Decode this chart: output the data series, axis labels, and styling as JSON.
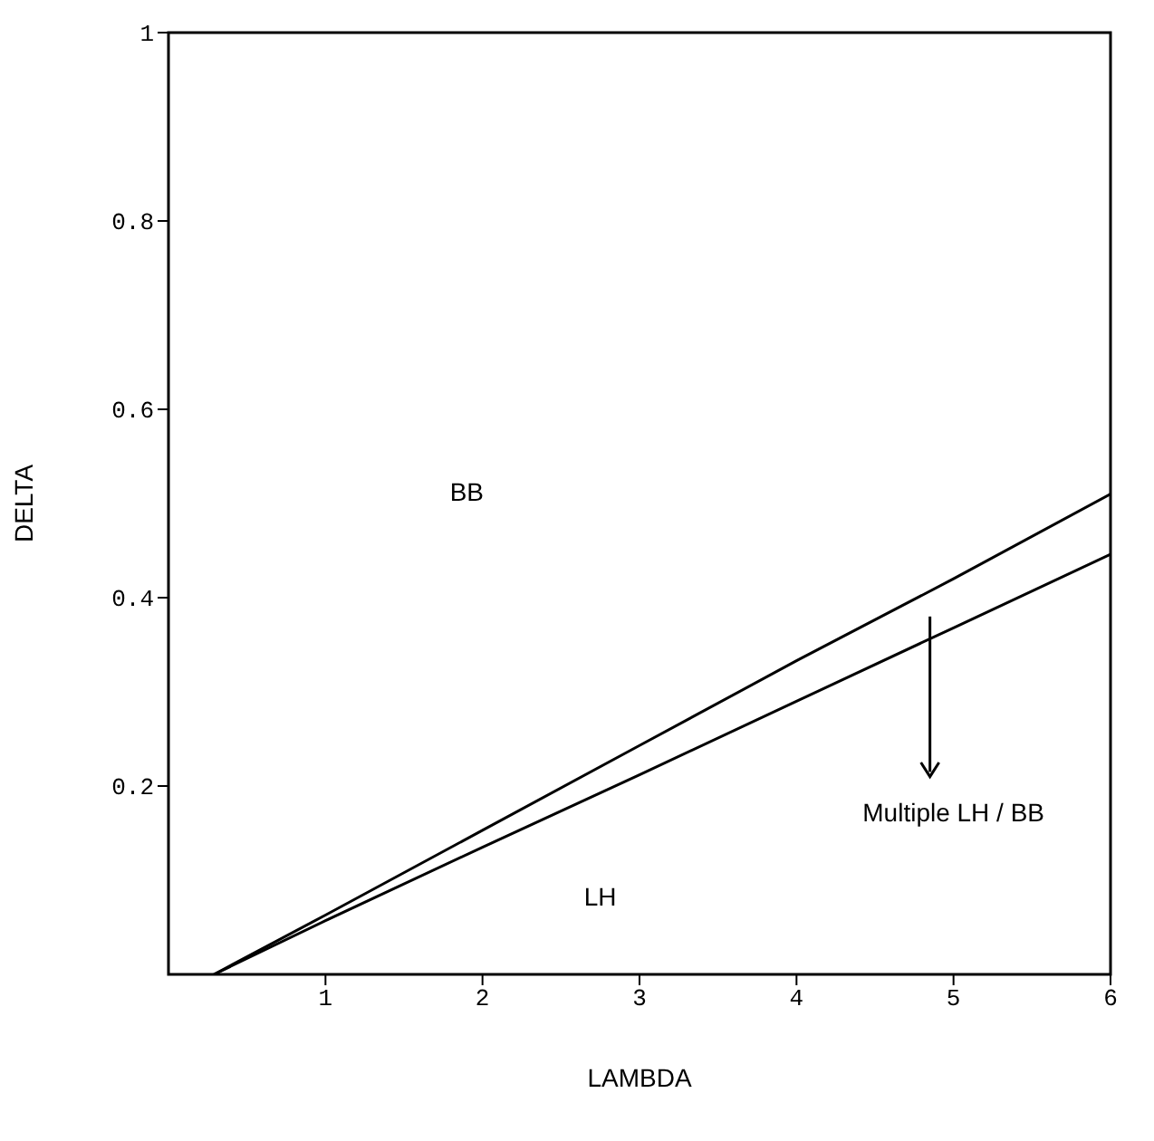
{
  "chart_data": {
    "type": "line",
    "xlabel": "LAMBDA",
    "ylabel": "DELTA",
    "xlim": [
      0,
      6
    ],
    "xticks": [
      1,
      2,
      3,
      4,
      5,
      6
    ],
    "ylim": [
      0,
      1
    ],
    "yticks": [
      0.2,
      0.4,
      0.6,
      0.8,
      1
    ],
    "series": [
      {
        "color": "#000000",
        "x": [
          0.29,
          1,
          2,
          3,
          4,
          5,
          6
        ],
        "values": [
          0,
          0.063,
          0.153,
          0.243,
          0.333,
          0.42,
          0.51
        ]
      },
      {
        "color": "#000000",
        "x": [
          0.29,
          1,
          2,
          3,
          4,
          5,
          6
        ],
        "values": [
          0,
          0.057,
          0.135,
          0.212,
          0.29,
          0.368,
          0.446
        ]
      }
    ],
    "marker": "none",
    "line_style": "solid",
    "grid": false,
    "legend": false,
    "annotations": [
      "BB",
      "LH",
      "Multiple LH / BB"
    ]
  }
}
